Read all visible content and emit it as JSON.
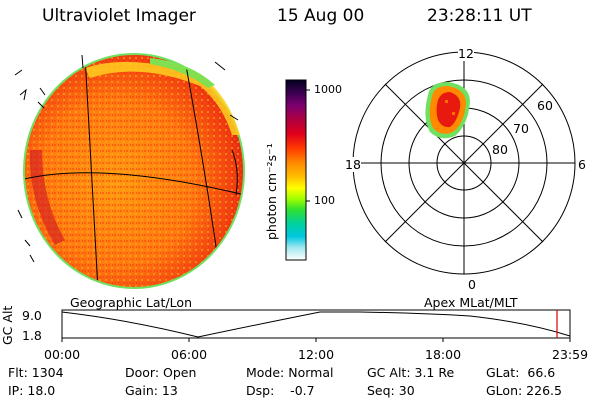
{
  "header": {
    "instrument": "Ultraviolet Imager",
    "date": "15 Aug 00",
    "time": "23:28:11 UT"
  },
  "colorbar": {
    "unit_label": "photon cm⁻²s⁻¹",
    "ticks": [
      "1000",
      "100"
    ],
    "colors": [
      "#000000",
      "#3a0050",
      "#7a0070",
      "#b00040",
      "#e0001a",
      "#ff3a00",
      "#ff7a00",
      "#ffa000",
      "#ffd000",
      "#ffff00",
      "#a0ff00",
      "#30e030",
      "#00d0a0",
      "#00c8e0",
      "#90e0f0",
      "#ffffff"
    ]
  },
  "polar_plot": {
    "mlt_labels": {
      "top": "12",
      "bottom": "0",
      "left": "18",
      "right": "6"
    },
    "lat_labels": [
      "60",
      "70",
      "80"
    ]
  },
  "timeline": {
    "left_title": "Geographic Lat/Lon",
    "right_title": "Apex MLat/MLT",
    "axis_label": "GC Alt",
    "y_ticks": [
      "9.0",
      "1.8"
    ],
    "x_ticks": [
      "00:00",
      "06:00",
      "12:00",
      "18:00",
      "23:59"
    ],
    "marker_color": "#e00000"
  },
  "info": {
    "flt": "Flt: 1304",
    "ip": "IP: 18.0",
    "door": "Door: Open",
    "gain": "Gain: 13",
    "mode": "Mode: Normal",
    "dsp": "Dsp:    -0.7",
    "gcalt": "GC Alt: 3.1 Re",
    "seq": "Seq: 30",
    "glat": "GLat:  66.6",
    "glon": "GLon: 226.5"
  }
}
